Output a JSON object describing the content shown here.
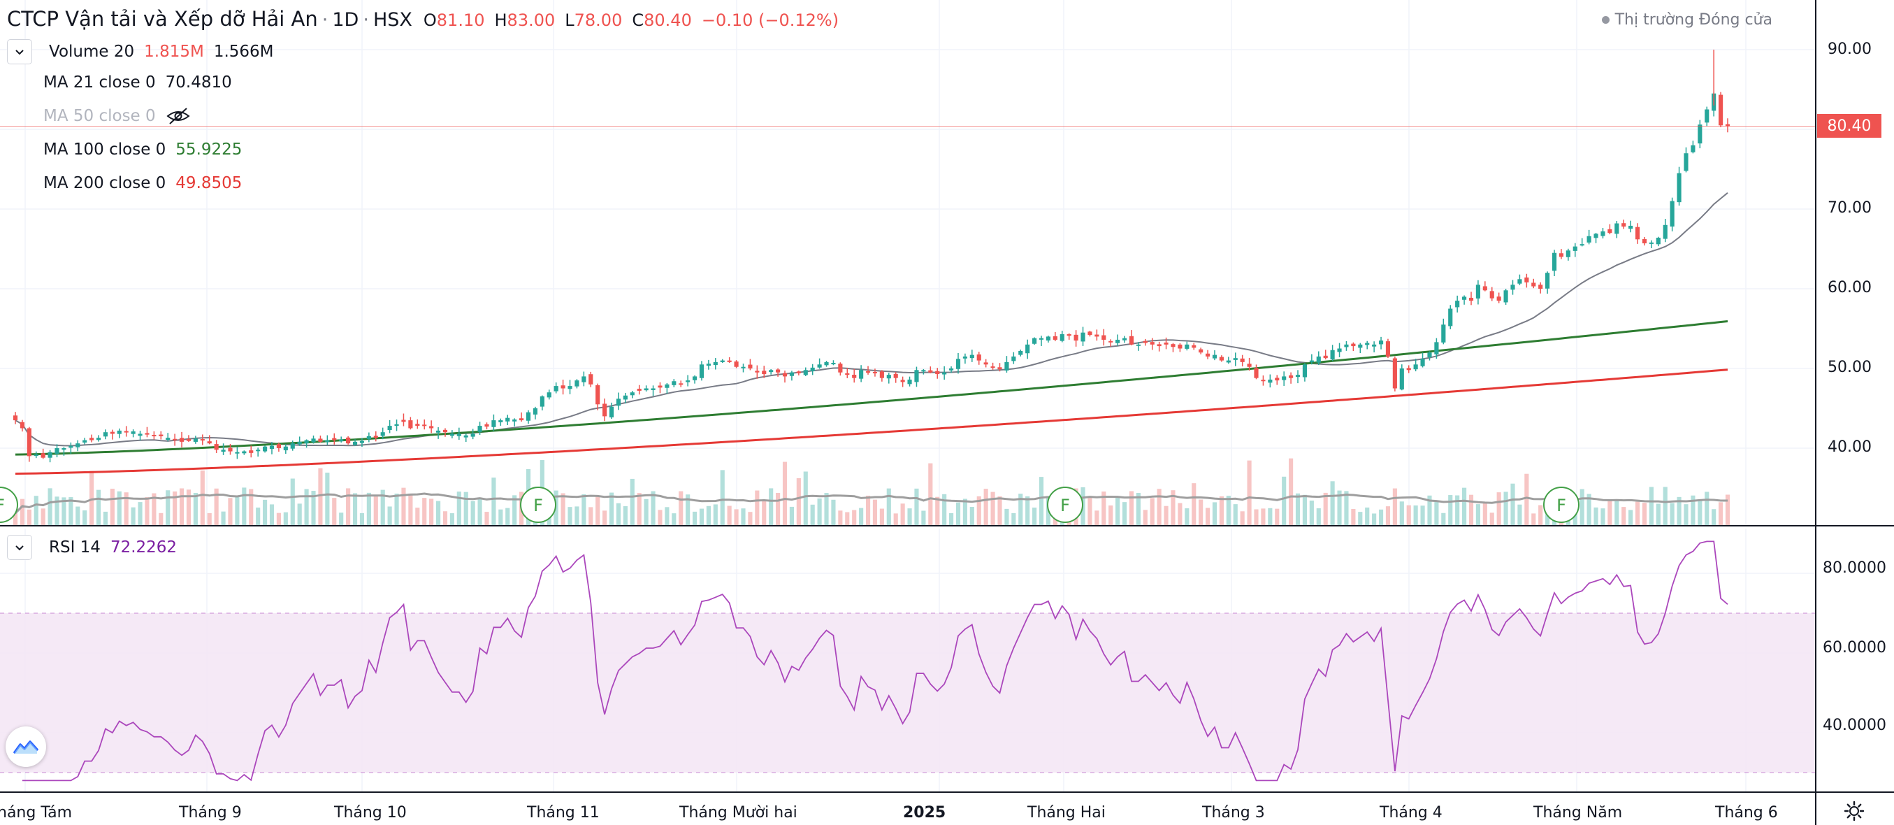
{
  "header": {
    "symbol": "CTCP Vận tải và Xếp dỡ Hải An",
    "sep": "·",
    "interval": "1D",
    "exchange": "HSX",
    "o_label": "O",
    "o_value": "81.10",
    "h_label": "H",
    "h_value": "83.00",
    "l_label": "L",
    "l_value": "78.00",
    "c_label": "C",
    "c_value": "80.40",
    "change": "−0.10 (−0.12%)",
    "market_status": "Thị trường Đóng cửa"
  },
  "indicators": [
    {
      "name": "Volume 20",
      "values": [
        "1.815M",
        "1.566M"
      ],
      "colors": [
        "#ef5350",
        "#131722"
      ]
    },
    {
      "name": "MA 21 close 0",
      "values": [
        "70.4810"
      ],
      "colors": [
        "#131722"
      ],
      "visible": true
    },
    {
      "name": "MA 50 close 0",
      "values": [],
      "visible": false
    },
    {
      "name": "MA 100 close 0",
      "values": [
        "55.9225"
      ],
      "colors": [
        "#2e7d32"
      ]
    },
    {
      "name": "MA 200 close 0",
      "values": [
        "49.8505"
      ],
      "colors": [
        "#e53935"
      ]
    }
  ],
  "rsi": {
    "name": "RSI 14",
    "value": "72.2262"
  },
  "price_axis": [
    "90.00",
    "70.00",
    "60.00",
    "50.00",
    "40.00"
  ],
  "last_price": "80.40",
  "rsi_axis": [
    "80.0000",
    "60.0000",
    "40.0000"
  ],
  "time_axis": [
    "háng Tám",
    "Tháng 9",
    "Tháng 10",
    "Tháng 11",
    "Tháng Mười hai",
    "2025",
    "Tháng Hai",
    "Tháng 3",
    "Tháng 4",
    "Tháng Năm",
    "Tháng 6"
  ],
  "colors": {
    "up": "#26a69a",
    "down": "#ef5350",
    "ma21": "#787b86",
    "ma100": "#2e7d32",
    "ma200": "#e53935",
    "rsi": "#9c27b0",
    "rsi_band": "#f3e5f5"
  },
  "chart_data": {
    "type": "candlestick",
    "title": "CTCP Vận tải và Xếp dỡ Hải An · 1D · HSX",
    "ylim": [
      30,
      93
    ],
    "rsi_ylim": [
      25,
      90
    ],
    "rsi_bands": [
      30,
      70
    ],
    "current_price": 80.4,
    "dividend_markers": [
      "2024-08-01",
      "2024-10-30",
      "2025-02-03",
      "2025-05-08"
    ],
    "closes": [
      43.5,
      42.5,
      39.0,
      39.2,
      38.8,
      39.5,
      40.0,
      40.0,
      40.3,
      40.6,
      41.0,
      41.0,
      41.3,
      42.0,
      41.8,
      42.2,
      42.0,
      42.1,
      41.8,
      41.7,
      41.5,
      41.5,
      41.3,
      41.0,
      40.8,
      40.9,
      41.2,
      41.0,
      40.6,
      39.8,
      39.8,
      39.6,
      39.5,
      39.6,
      39.4,
      39.8,
      40.2,
      40.3,
      40.0,
      40.2,
      40.6,
      40.8,
      41.0,
      41.2,
      40.8,
      41.0,
      41.0,
      41.1,
      40.6,
      40.8,
      40.9,
      41.5,
      41.3,
      42.0,
      42.8,
      43.0,
      43.3,
      42.5,
      42.8,
      42.8,
      42.5,
      42.2,
      42.0,
      41.8,
      41.8,
      41.6,
      41.8,
      42.8,
      42.7,
      43.5,
      43.5,
      43.8,
      43.6,
      43.5,
      44.5,
      45.0,
      46.5,
      47.0,
      47.8,
      47.5,
      47.8,
      48.5,
      49.0,
      48.0,
      45.5,
      44.0,
      45.2,
      46.2,
      46.6,
      47.0,
      47.2,
      47.5,
      47.5,
      47.6,
      48.0,
      48.4,
      48.0,
      48.5,
      49.0,
      50.5,
      50.6,
      50.8,
      51.0,
      50.8,
      50.2,
      50.2,
      50.0,
      49.5,
      49.3,
      49.8,
      49.5,
      49.0,
      49.5,
      49.4,
      49.8,
      50.1,
      50.5,
      50.8,
      50.7,
      49.5,
      49.2,
      48.8,
      49.8,
      49.5,
      49.4,
      48.8,
      49.2,
      48.8,
      48.3,
      48.6,
      49.8,
      49.8,
      49.5,
      49.3,
      49.5,
      50.0,
      51.2,
      51.5,
      51.7,
      51.0,
      50.5,
      50.1,
      49.9,
      50.8,
      51.5,
      52.2,
      53.0,
      53.8,
      53.8,
      54.0,
      53.6,
      54.3,
      54.1,
      53.5,
      54.5,
      54.2,
      54.0,
      53.6,
      53.3,
      53.6,
      53.8,
      53.0,
      53.0,
      53.2,
      53.0,
      52.8,
      53.0,
      52.7,
      52.5,
      53.0,
      52.6,
      52.0,
      51.5,
      51.7,
      51.0,
      51.0,
      51.3,
      50.8,
      50.2,
      48.8,
      48.4,
      48.6,
      48.5,
      49.0,
      48.8,
      49.2,
      50.5,
      51.0,
      51.5,
      51.3,
      52.3,
      52.5,
      53.0,
      52.8,
      53.0,
      53.2,
      53.0,
      53.5,
      51.5,
      47.5,
      50.0,
      49.8,
      50.5,
      51.2,
      52.0,
      53.3,
      55.5,
      57.5,
      58.5,
      59.0,
      58.5,
      60.5,
      59.8,
      58.8,
      58.5,
      59.8,
      60.5,
      61.2,
      60.8,
      60.3,
      60.0,
      62.0,
      64.5,
      64.0,
      64.8,
      65.3,
      65.6,
      66.6,
      66.9,
      67.2,
      67.0,
      68.2,
      67.8,
      67.9,
      66.2,
      65.7,
      65.8,
      66.4,
      68.0,
      71.0,
      74.5,
      77.0,
      78.0,
      80.6,
      82.5,
      84.5,
      80.5,
      80.4
    ],
    "ma21_end": 70.481,
    "ma100_end": 55.9225,
    "ma200_end": 49.8505,
    "rsi_last": 72.2262,
    "volume_last": "1.815M",
    "volume_ma20": "1.566M"
  }
}
